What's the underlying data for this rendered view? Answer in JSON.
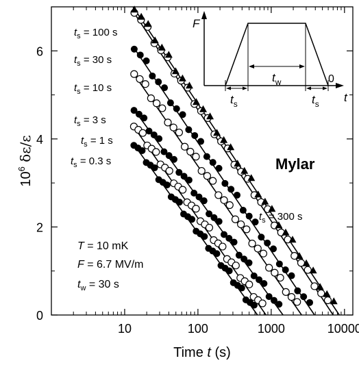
{
  "chart_data": {
    "type": "scatter",
    "xscale": "log",
    "xlim": [
      1,
      13000
    ],
    "ylim": [
      0,
      7
    ],
    "xticks": [
      10,
      100,
      1000,
      10000
    ],
    "xtick_labels": [
      "10",
      "100",
      "1000",
      "10000"
    ],
    "yticks": [
      0,
      2,
      4,
      6
    ],
    "ytick_labels": [
      "0",
      "2",
      "4",
      "6"
    ],
    "xlabel": {
      "pre": "Time ",
      "var": "t",
      "post": " (s)"
    },
    "ylabel": {
      "pre": "10",
      "sup": "6",
      "post": " δε/ε"
    },
    "grid": false,
    "material_label": "Mylar",
    "params": [
      {
        "var": "T",
        "sub": "",
        "text": " = 10 mK"
      },
      {
        "var": "F",
        "sub": "",
        "text": " = 6.7 MV/m"
      },
      {
        "var": "t",
        "sub": "w",
        "text": " =  30 s"
      }
    ],
    "series": [
      {
        "label_var": "t",
        "label_sub": "s",
        "label_text": " = 0.3 s",
        "ts": 0.3,
        "marker": "filled-circle",
        "x_start": 13,
        "y_start": 3.9,
        "x_zero": 650
      },
      {
        "label_var": "t",
        "label_sub": "s",
        "label_text": " = 1 s",
        "ts": 1,
        "marker": "open-circle",
        "x_start": 13,
        "y_start": 4.3,
        "x_zero": 850
      },
      {
        "label_var": "t",
        "label_sub": "s",
        "label_text": " = 3 s",
        "ts": 3,
        "marker": "filled-circle",
        "x_start": 13,
        "y_start": 4.7,
        "x_zero": 1450
      },
      {
        "label_var": "t",
        "label_sub": "s",
        "label_text": " = 10 s",
        "ts": 10,
        "marker": "open-circle",
        "x_start": 13,
        "y_start": 5.5,
        "x_zero": 2600
      },
      {
        "label_var": "t",
        "label_sub": "s",
        "label_text": " = 30 s",
        "ts": 30,
        "marker": "filled-circle",
        "x_start": 13,
        "y_start": 6.1,
        "x_zero": 3900
      },
      {
        "label_var": "t",
        "label_sub": "s",
        "label_text": " = 100 s",
        "ts": 100,
        "marker": "open-circle",
        "x_start": 13,
        "y_start": 6.9,
        "x_zero": 7000
      },
      {
        "label_var": "t",
        "label_sub": "s",
        "label_text": " = 300 s",
        "ts": 300,
        "marker": "filled-triangle",
        "x_start": 13,
        "y_start": 7.0,
        "x_zero": 8500
      }
    ],
    "inset": {
      "y_label": "F",
      "x_label": "t",
      "zero_label": "0",
      "tw_label": {
        "var": "t",
        "sub": "w"
      },
      "ts_label": {
        "var": "t",
        "sub": "s"
      }
    }
  }
}
